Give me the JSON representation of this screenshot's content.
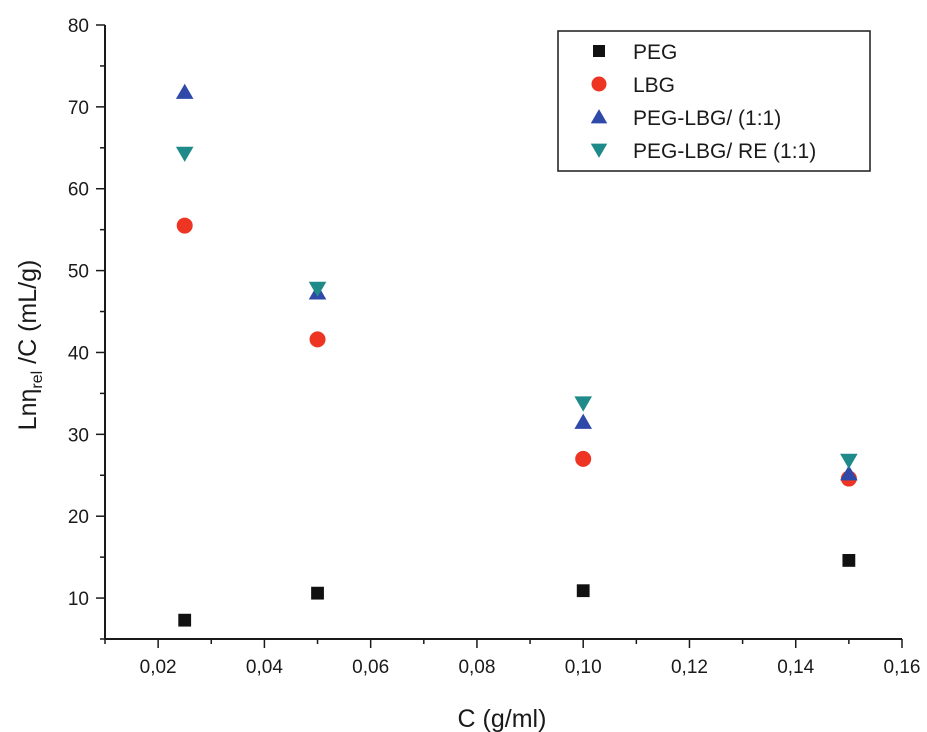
{
  "chart_data": {
    "type": "scatter",
    "xlabel": "C (g/ml)",
    "ylabel": {
      "base": "Ln",
      "eta": "η",
      "eta_sub": "rel",
      "rest": " /C (mL/g)"
    },
    "xlim": [
      0.01,
      0.16
    ],
    "ylim": [
      5,
      80
    ],
    "x_ticks": [
      0.02,
      0.04,
      0.06,
      0.08,
      0.1,
      0.12,
      0.14,
      0.16
    ],
    "x_tick_labels": [
      "0,02",
      "0,04",
      "0,06",
      "0,08",
      "0,10",
      "0,12",
      "0,14",
      "0,16"
    ],
    "y_ticks": [
      10,
      20,
      30,
      40,
      50,
      60,
      70,
      80
    ],
    "y_tick_labels": [
      "10",
      "20",
      "30",
      "40",
      "50",
      "60",
      "70",
      "80"
    ],
    "grid": false,
    "legend_position": "top-right",
    "series": [
      {
        "name": "PEG",
        "marker": "square",
        "color": "#111111",
        "x": [
          0.025,
          0.05,
          0.1,
          0.15
        ],
        "y": [
          7.3,
          10.6,
          10.9,
          14.6
        ]
      },
      {
        "name": "LBG",
        "marker": "circle",
        "color": "#ee3524",
        "x": [
          0.025,
          0.05,
          0.1,
          0.15
        ],
        "y": [
          55.5,
          41.6,
          27.0,
          24.6
        ]
      },
      {
        "name": "PEG-LBG/ (1:1)",
        "marker": "triangle-up",
        "color": "#2e49a8",
        "x": [
          0.025,
          0.05,
          0.1,
          0.15
        ],
        "y": [
          71.8,
          47.3,
          31.5,
          25.2
        ]
      },
      {
        "name": "PEG-LBG/ RE (1:1)",
        "marker": "triangle-down",
        "color": "#1e8a8a",
        "x": [
          0.025,
          0.05,
          0.1,
          0.15
        ],
        "y": [
          64.3,
          47.8,
          33.8,
          26.8
        ]
      }
    ]
  }
}
